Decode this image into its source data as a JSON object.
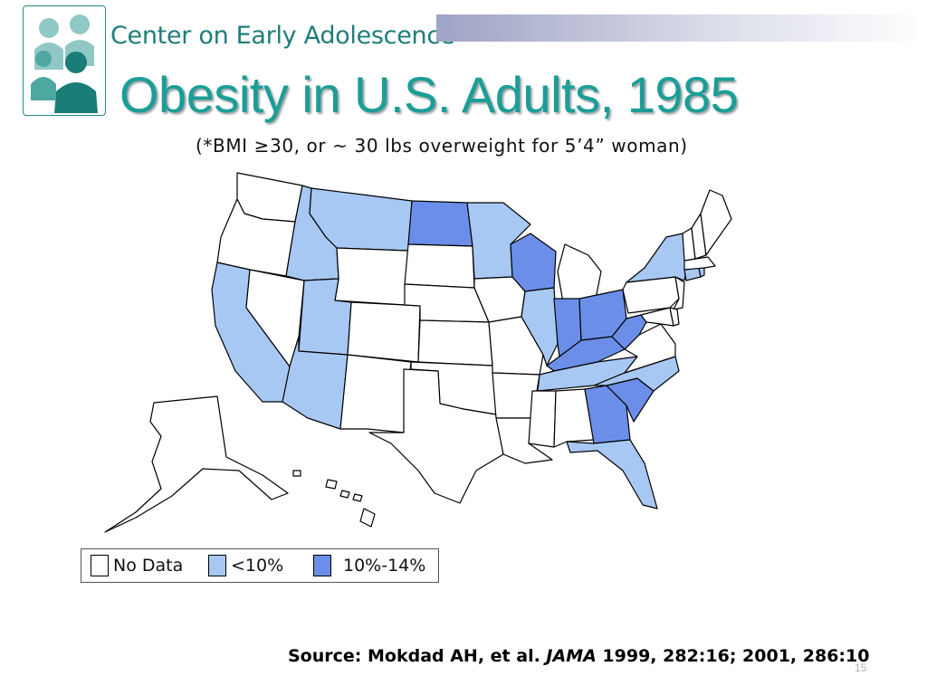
{
  "header": {
    "organization": "Center on Early Adolescence",
    "title": "Obesity in U.S. Adults, 1985",
    "subtitle": "(*BMI ≥30, or ~ 30 lbs overweight for 5’4” woman)"
  },
  "colors": {
    "no_data": "#ffffff",
    "lt10": "#a8c8f4",
    "10to14": "#6b8fe8",
    "brand": "#1b9e96"
  },
  "map": {
    "categories": {
      "no_data": [
        "Washington",
        "Oregon",
        "Nevada",
        "Wyoming",
        "Colorado",
        "New Mexico",
        "South Dakota",
        "Nebraska",
        "Kansas",
        "Oklahoma",
        "Texas",
        "Iowa",
        "Missouri",
        "Arkansas",
        "Louisiana",
        "Mississippi",
        "Alabama",
        "Michigan",
        "Pennsylvania",
        "Virginia",
        "New Jersey",
        "Maryland",
        "Delaware",
        "Vermont",
        "New Hampshire",
        "Maine",
        "Massachusetts",
        "Alaska",
        "Hawaii"
      ],
      "lt10": [
        "California",
        "Idaho",
        "Montana",
        "Utah",
        "Arizona",
        "Minnesota",
        "Illinois",
        "Tennessee",
        "North Carolina",
        "Florida",
        "New York",
        "Connecticut",
        "Rhode Island"
      ],
      "10to14": [
        "North Dakota",
        "Wisconsin",
        "Indiana",
        "Ohio",
        "Kentucky",
        "West Virginia",
        "Georgia",
        "South Carolina"
      ]
    }
  },
  "legend": [
    {
      "label": "No Data",
      "key": "no_data"
    },
    {
      "label": "<10%",
      "key": "lt10"
    },
    {
      "label": "10%-14%",
      "key": "10to14"
    }
  ],
  "source": {
    "prefix": "Source: Mokdad AH, et al. ",
    "journal": "JAMA",
    "suffix": " 1999, 282:16; 2001, 286:10"
  },
  "slide_number": "15"
}
